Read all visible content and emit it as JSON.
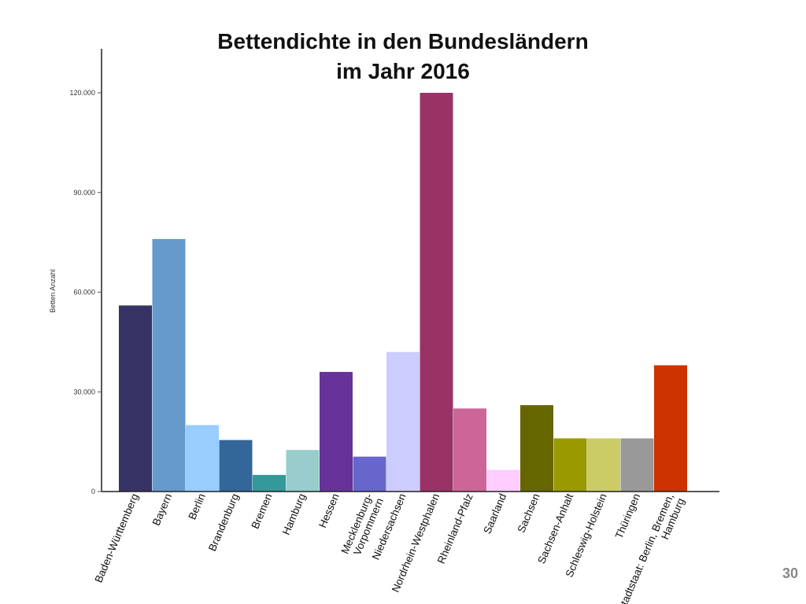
{
  "slide": {
    "number": "30"
  },
  "chart_data": {
    "type": "bar",
    "title_lines": [
      "Bettendichte in den Bundesländern",
      "im Jahr 2016"
    ],
    "xlabel": "",
    "ylabel": "Betten Anzahl",
    "ylim": [
      0,
      132000
    ],
    "yticks": [
      0,
      30000,
      60000,
      90000,
      120000
    ],
    "ytick_labels": [
      "0",
      "30.000",
      "60.000",
      "90.000",
      "120.000"
    ],
    "grid": false,
    "legend": "none",
    "categories": [
      "Baden-Württemberg",
      "Bayern",
      "Berlin",
      "Brandenburg",
      "Bremen",
      "Hamburg",
      "Hessen",
      "Mecklenburg-Vorpommern",
      "Niedersachsen",
      "Nordrhein-Westphalen",
      "Rheinland-Pfalz",
      "Saarland",
      "Sachsen",
      "Sachsen-Anhalt",
      "Schleswig-Holstein",
      "Thüringen",
      "Stadtstaat: Berlin, Bremen, Hamburg"
    ],
    "category_label_lines": [
      [
        "Baden-Württemberg"
      ],
      [
        "Bayern"
      ],
      [
        "Berlin"
      ],
      [
        "Brandenburg"
      ],
      [
        "Bremen"
      ],
      [
        "Hamburg"
      ],
      [
        "Hessen"
      ],
      [
        "Mecklenburg-",
        "Vorpommern"
      ],
      [
        "Niedersachsen"
      ],
      [
        "Nordrhein-Westphalen"
      ],
      [
        "Rheinland-Pfalz"
      ],
      [
        "Saarland"
      ],
      [
        "Sachsen"
      ],
      [
        "Sachsen-Anhalt"
      ],
      [
        "Schleswig-Holstein"
      ],
      [
        "Thüringen"
      ],
      [
        "Stadtstaat: Berlin, Bremen,",
        "Hamburg"
      ]
    ],
    "values": [
      56000,
      76000,
      20000,
      15500,
      5000,
      12500,
      36000,
      10500,
      42000,
      120000,
      25000,
      6500,
      26000,
      16000,
      16000,
      16000,
      38000
    ],
    "colors": [
      "#363464",
      "#6699cc",
      "#99ccff",
      "#336699",
      "#339999",
      "#99cccc",
      "#663399",
      "#6666cc",
      "#ccccff",
      "#993366",
      "#cc6699",
      "#ffccff",
      "#666600",
      "#999900",
      "#cccc66",
      "#999999",
      "#cc3300"
    ]
  }
}
